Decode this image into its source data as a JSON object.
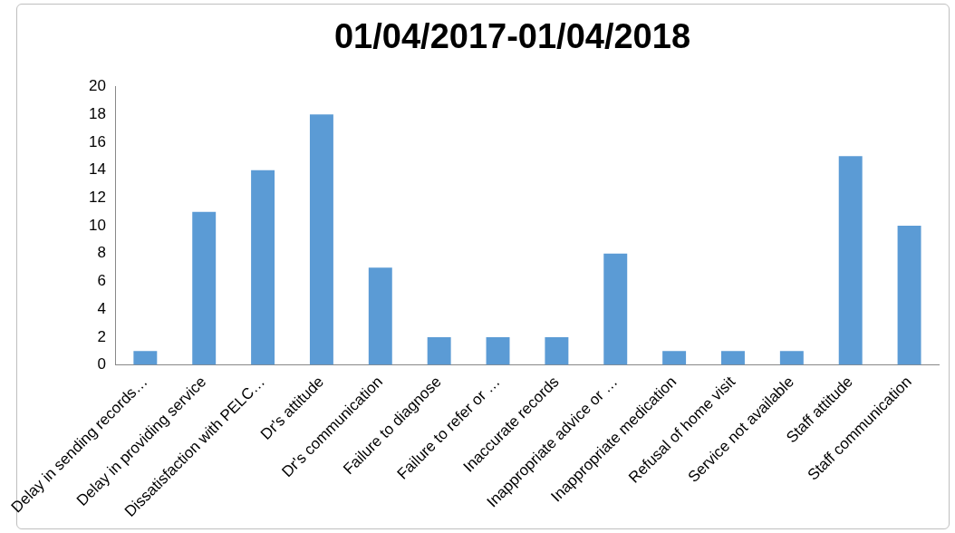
{
  "chart_data": {
    "type": "bar",
    "title": "01/04/2017-01/04/2018",
    "categories": [
      "Delay in sending records…",
      "Delay in providing service",
      "Dissatisfaction with PELC…",
      "Dr's attitude",
      "Dr's communication",
      "Failure to diagnose",
      "Failure to refer or …",
      "Inaccurate records",
      "Inappropriate advice or …",
      "Inappropriate medication",
      "Refusal of home visit",
      "Service not available",
      "Staff attitude",
      "Staff communication"
    ],
    "values": [
      1,
      11,
      14,
      18,
      7,
      2,
      2,
      2,
      8,
      1,
      1,
      1,
      15,
      10
    ],
    "color": "#5b9bd5",
    "ylim": [
      0,
      20
    ],
    "yticks": [
      0,
      2,
      4,
      6,
      8,
      10,
      12,
      14,
      16,
      18,
      20
    ],
    "grid": false,
    "legend": false
  }
}
